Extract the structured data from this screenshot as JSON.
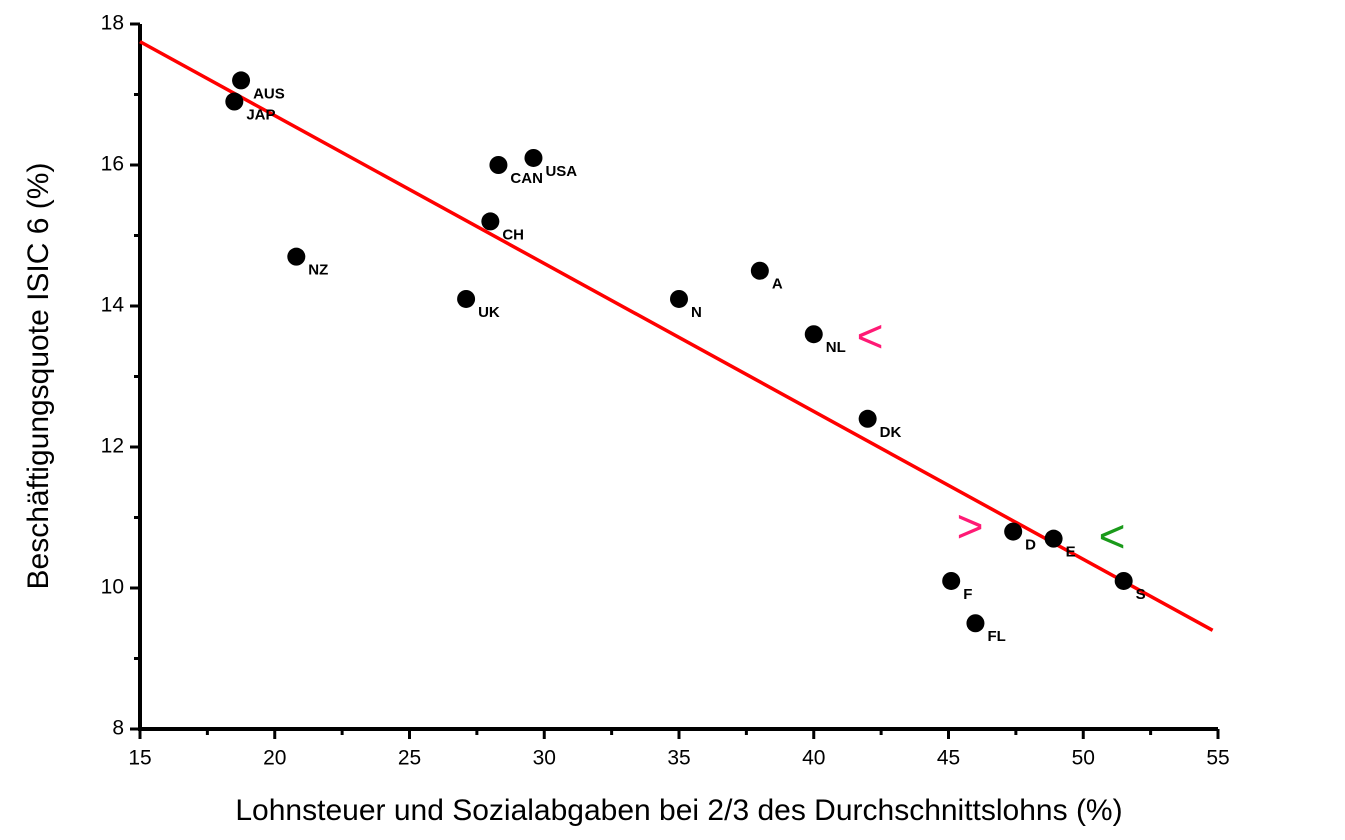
{
  "chart_data": {
    "type": "scatter",
    "xlabel": "Lohnsteuer und Sozialabgaben bei 2/3 des Durchschnittslohns (%)",
    "ylabel": "Beschäftigungsquote ISIC 6 (%)",
    "labels": [
      "AUS",
      "JAP",
      "CAN",
      "USA",
      "CH",
      "NZ",
      "UK",
      "N",
      "A",
      "NL",
      "DK",
      "D",
      "E",
      "S",
      "F",
      "FL"
    ],
    "x": [
      18.75,
      18.5,
      28.3,
      29.6,
      28.0,
      20.8,
      27.1,
      35.0,
      38.0,
      40.0,
      42.0,
      47.4,
      48.9,
      51.5,
      45.1,
      46.0
    ],
    "values": [
      17.2,
      16.9,
      16.0,
      16.1,
      15.2,
      14.7,
      14.1,
      14.1,
      14.5,
      13.6,
      12.4,
      10.8,
      10.7,
      10.1,
      10.1,
      9.5
    ],
    "color": "#000000",
    "fit": {
      "color": "#ff0000",
      "x": [
        15,
        54.8
      ],
      "values": [
        17.75,
        9.4
      ]
    },
    "annotations": [
      {
        "text": "<",
        "color": "#ff1a75"
      },
      {
        "text": ">",
        "color": "#ff1a75"
      },
      {
        "text": "<",
        "color": "#1a9a1a"
      }
    ],
    "xlim": [
      15,
      55
    ],
    "xticks": [
      15,
      20,
      25,
      30,
      35,
      40,
      45,
      50,
      55
    ],
    "ylim": [
      8,
      18
    ],
    "yticks": [
      8,
      10,
      12,
      14,
      16,
      18
    ],
    "grid": false
  }
}
